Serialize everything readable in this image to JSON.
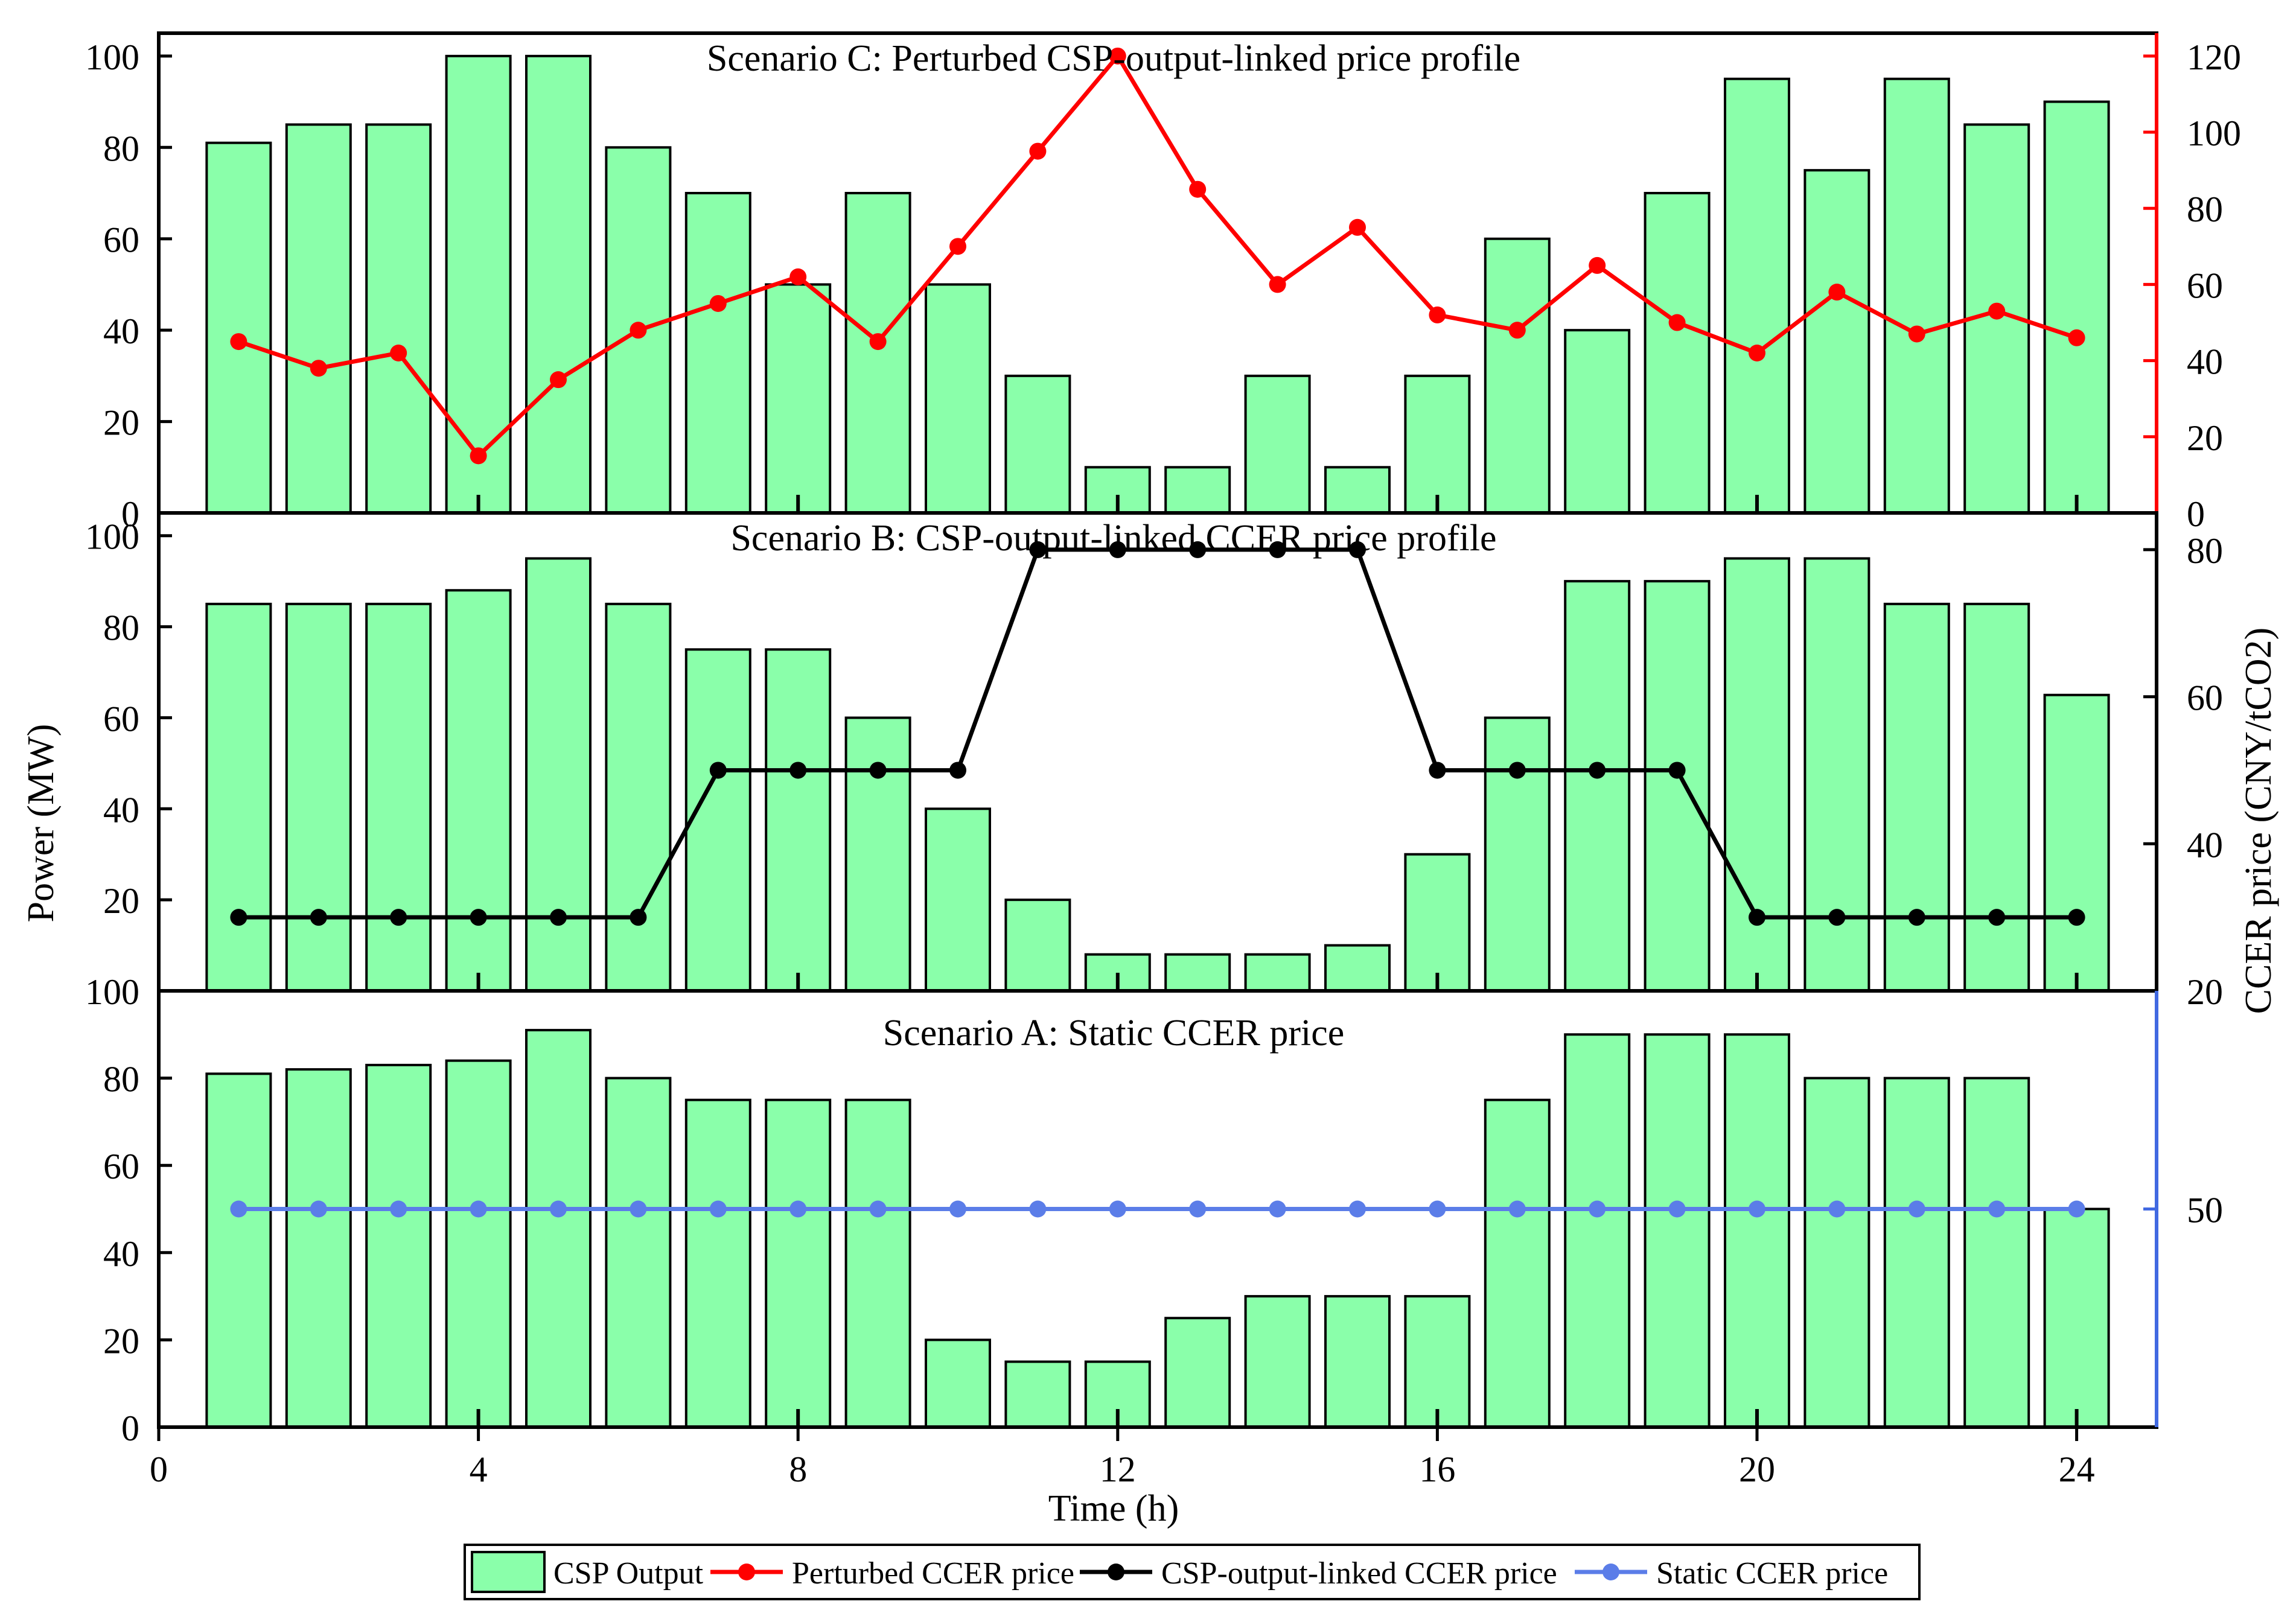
{
  "chart_data": {
    "type": "bar+line",
    "x_label": "Time (h)",
    "x_ticks": [
      0,
      4,
      8,
      12,
      16,
      20,
      24
    ],
    "x_range": [
      0,
      25
    ],
    "y_label": "Power (MW)",
    "y2_label": "CCER price (CNY/tCO2)",
    "panels": [
      {
        "id": "C",
        "title": "Scenario C: Perturbed CSP-output-linked price profile",
        "power_range": [
          0,
          105
        ],
        "power_ticks": [
          0,
          20,
          40,
          60,
          80,
          100
        ],
        "price_range": [
          0,
          126
        ],
        "price_ticks": [
          0,
          20,
          40,
          60,
          80,
          100,
          120
        ],
        "price_axis_color": "#ff0000",
        "bars": {
          "name": "CSP Output",
          "x": [
            1,
            2,
            3,
            4,
            5,
            6,
            7,
            8,
            9,
            10,
            11,
            12,
            13,
            14,
            15,
            16,
            17,
            18,
            19,
            20,
            21,
            22,
            23,
            24
          ],
          "values": [
            81,
            85,
            85,
            100,
            100,
            80,
            70,
            50,
            70,
            50,
            30,
            10,
            10,
            30,
            10,
            30,
            60,
            40,
            70,
            95,
            75,
            95,
            85,
            90
          ]
        },
        "line": {
          "name": "Perturbed CCER price",
          "color": "#ff0000",
          "x": [
            1,
            2,
            3,
            4,
            5,
            6,
            7,
            8,
            9,
            10,
            11,
            12,
            13,
            14,
            15,
            16,
            17,
            18,
            19,
            20,
            21,
            22,
            23,
            24
          ],
          "values": [
            45,
            38,
            42,
            15,
            35,
            48,
            55,
            62,
            45,
            70,
            95,
            120,
            85,
            60,
            75,
            52,
            48,
            65,
            50,
            42,
            58,
            47,
            53,
            46
          ]
        }
      },
      {
        "id": "B",
        "title": "Scenario B: CSP-output-linked CCER price profile",
        "power_range": [
          0,
          105
        ],
        "power_ticks": [
          20,
          40,
          60,
          80,
          100
        ],
        "price_range": [
          20,
          85
        ],
        "price_ticks": [
          20,
          40,
          60,
          80
        ],
        "price_axis_color": "#000000",
        "bars": {
          "name": "CSP Output",
          "x": [
            1,
            2,
            3,
            4,
            5,
            6,
            7,
            8,
            9,
            10,
            11,
            12,
            13,
            14,
            15,
            16,
            17,
            18,
            19,
            20,
            21,
            22,
            23,
            24
          ],
          "values": [
            85,
            85,
            85,
            88,
            95,
            85,
            75,
            75,
            60,
            40,
            20,
            8,
            8,
            8,
            10,
            30,
            60,
            90,
            90,
            95,
            95,
            85,
            85,
            65
          ]
        },
        "line": {
          "name": "CSP-output-linked CCER price",
          "color": "#000000",
          "x": [
            1,
            2,
            3,
            4,
            5,
            6,
            7,
            8,
            9,
            10,
            11,
            12,
            13,
            14,
            15,
            16,
            17,
            18,
            19,
            20,
            21,
            22,
            23,
            24
          ],
          "values": [
            30,
            30,
            30,
            30,
            30,
            30,
            50,
            50,
            50,
            50,
            80,
            80,
            80,
            80,
            80,
            50,
            50,
            50,
            50,
            30,
            30,
            30,
            30,
            30
          ]
        }
      },
      {
        "id": "A",
        "title": "Scenario A: Static CCER price",
        "power_range": [
          0,
          100
        ],
        "power_ticks": [
          0,
          20,
          40,
          60,
          80,
          100
        ],
        "price_range": [
          0,
          100
        ],
        "price_ticks": [
          50
        ],
        "price_axis_color": "#4169e1",
        "bars": {
          "name": "CSP Output",
          "x": [
            1,
            2,
            3,
            4,
            5,
            6,
            7,
            8,
            9,
            10,
            11,
            12,
            13,
            14,
            15,
            16,
            17,
            18,
            19,
            20,
            21,
            22,
            23,
            24
          ],
          "values": [
            81,
            82,
            83,
            84,
            91,
            80,
            75,
            75,
            75,
            20,
            15,
            15,
            25,
            30,
            30,
            30,
            75,
            90,
            90,
            90,
            80,
            80,
            80,
            50
          ]
        },
        "line": {
          "name": "Static CCER price",
          "color": "#5b7de8",
          "x": [
            1,
            2,
            3,
            4,
            5,
            6,
            7,
            8,
            9,
            10,
            11,
            12,
            13,
            14,
            15,
            16,
            17,
            18,
            19,
            20,
            21,
            22,
            23,
            24
          ],
          "values": [
            50,
            50,
            50,
            50,
            50,
            50,
            50,
            50,
            50,
            50,
            50,
            50,
            50,
            50,
            50,
            50,
            50,
            50,
            50,
            50,
            50,
            50,
            50,
            50
          ]
        }
      }
    ],
    "legend": {
      "placement": "bottom",
      "entries": [
        {
          "label": "CSP Output",
          "kind": "bar",
          "color": "#8affaa"
        },
        {
          "label": "Perturbed CCER price",
          "kind": "line",
          "color": "#ff0000"
        },
        {
          "label": "CSP-output-linked CCER price",
          "kind": "line",
          "color": "#000000"
        },
        {
          "label": "Static CCER price",
          "kind": "line",
          "color": "#5b7de8"
        }
      ]
    },
    "colors": {
      "bar_fill": "#8affaa",
      "bar_stroke": "#000000"
    }
  }
}
